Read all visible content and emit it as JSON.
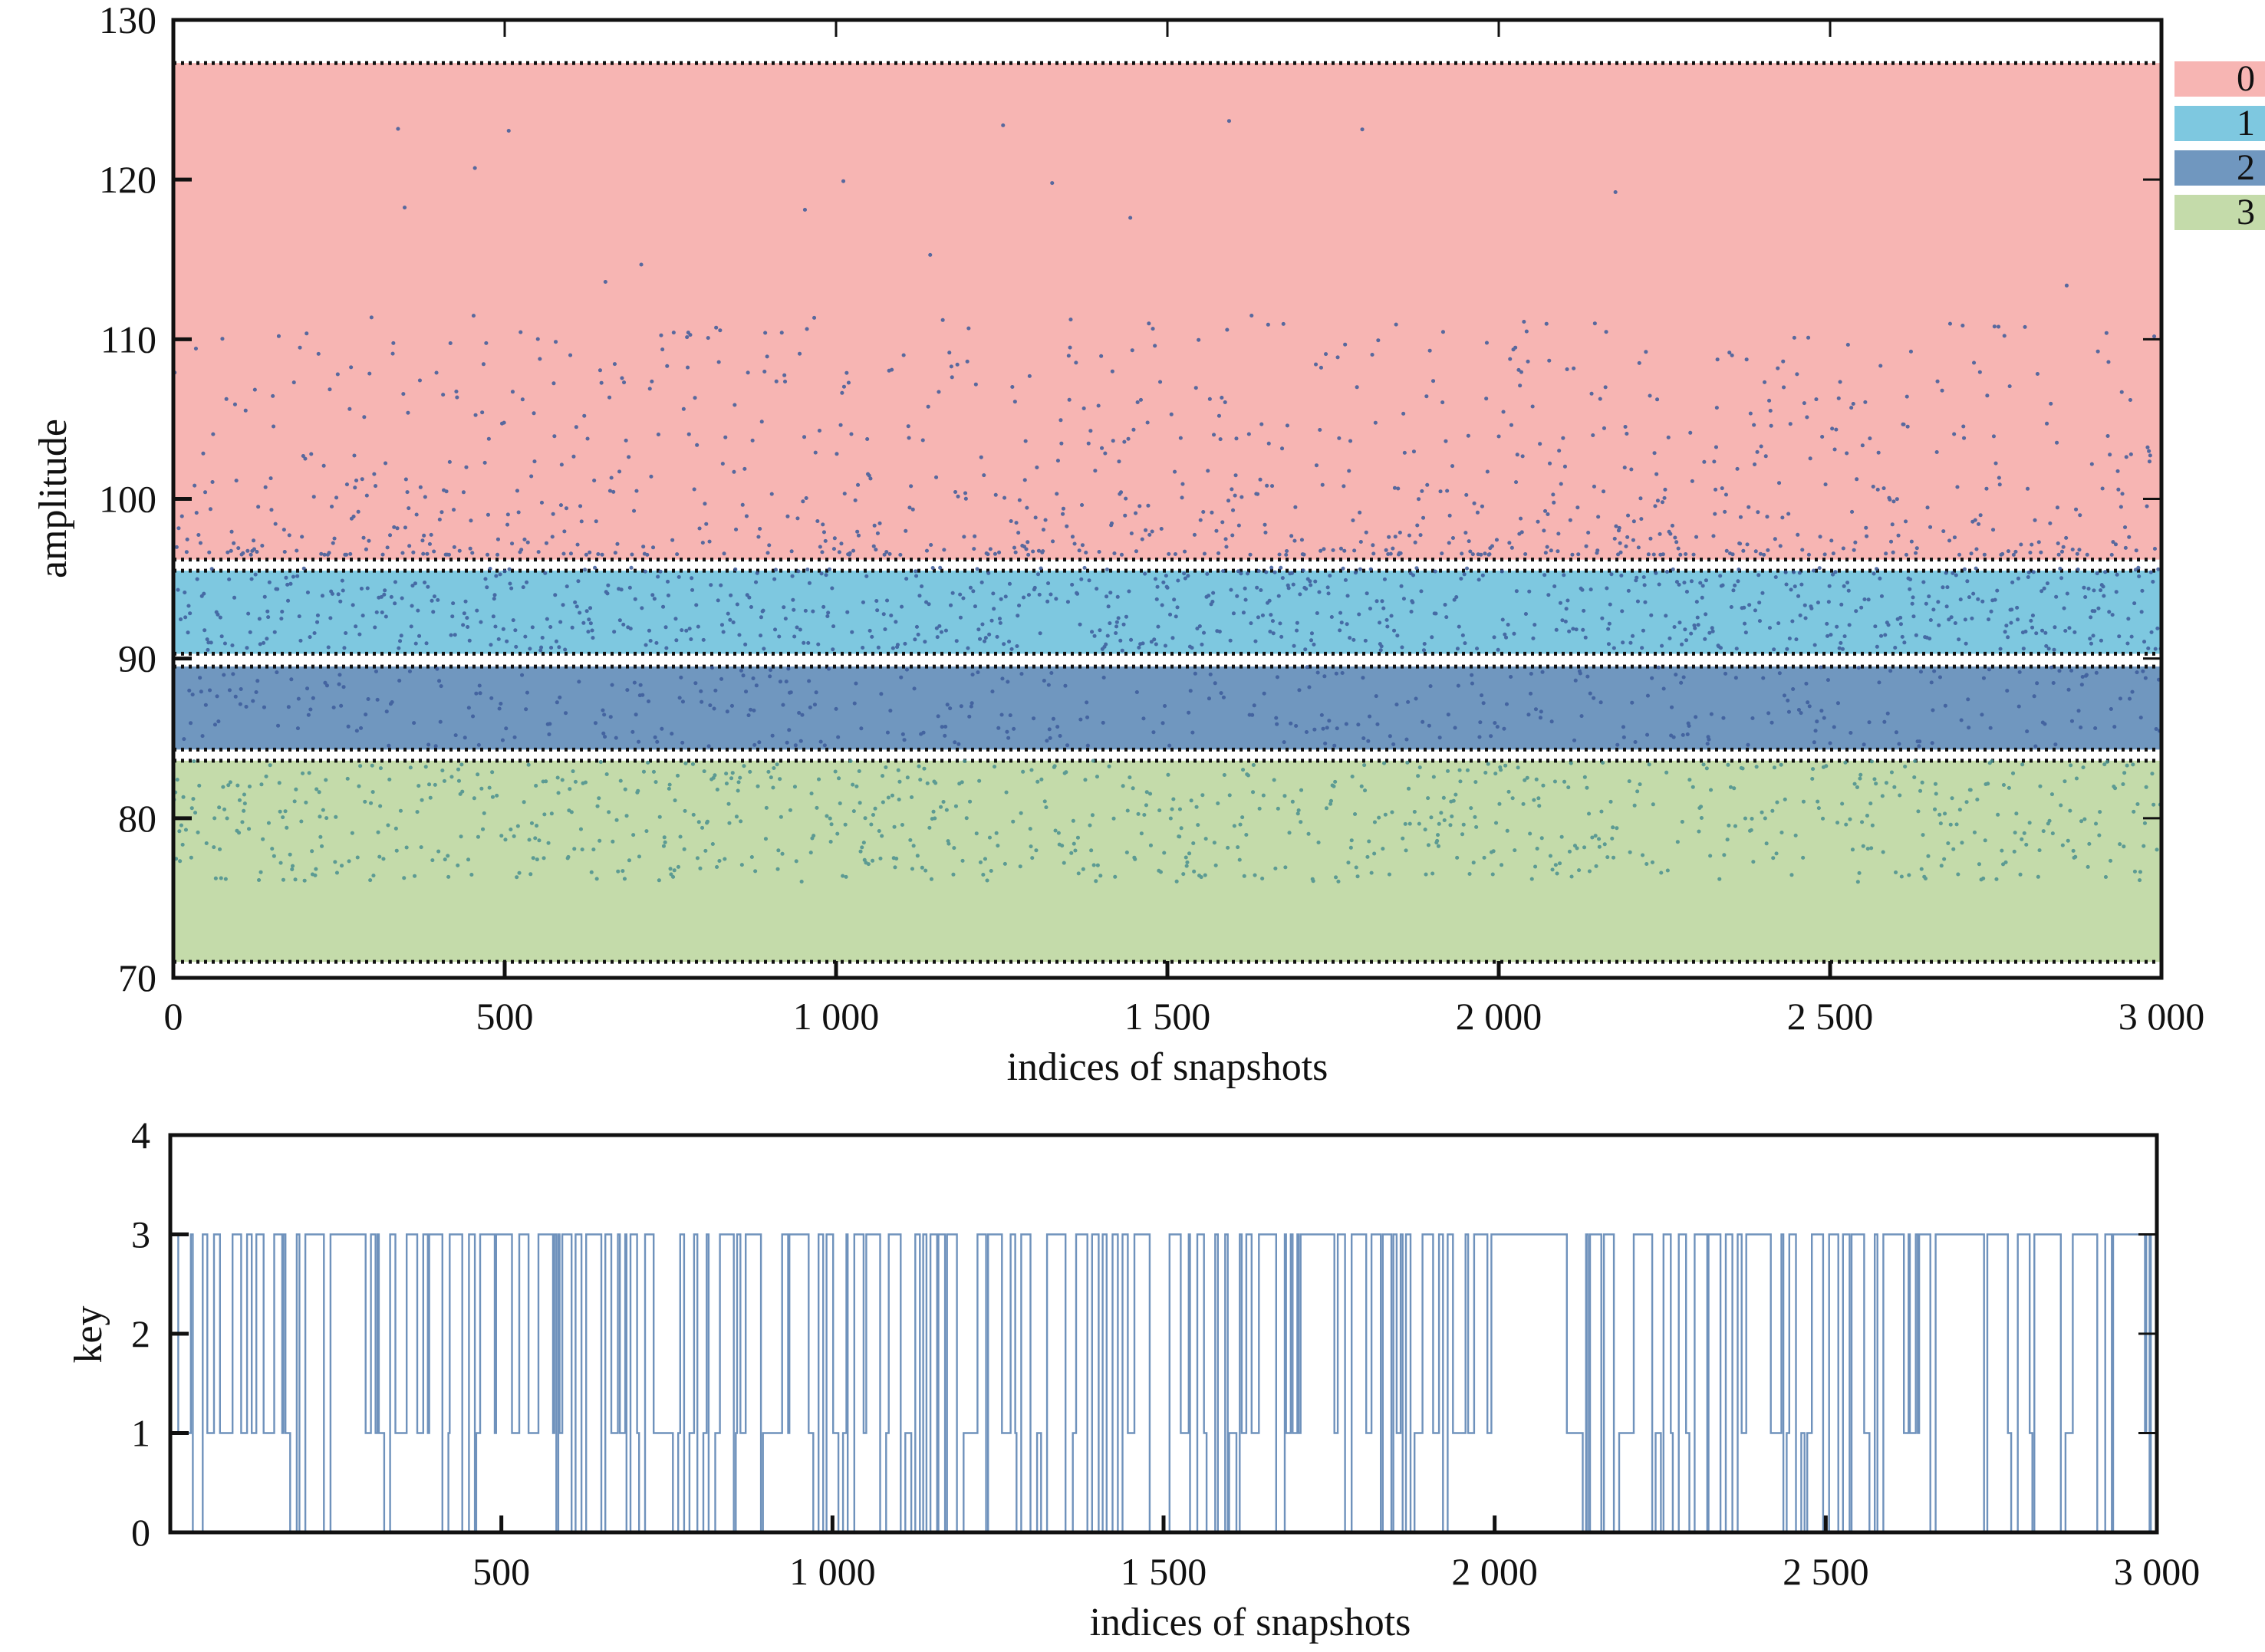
{
  "chart_data": [
    {
      "type": "scatter",
      "xlabel": "indices of snapshots",
      "ylabel": "amplitude",
      "xlim": [
        0,
        3000
      ],
      "ylim": [
        70,
        130
      ],
      "x_ticks": [
        0,
        500,
        1000,
        1500,
        2000,
        2500,
        3000
      ],
      "x_tick_labels": [
        "0",
        "500",
        "1 000",
        "1 500",
        "2 000",
        "2 500",
        "3 000"
      ],
      "y_ticks": [
        70,
        80,
        90,
        100,
        110,
        120,
        130
      ],
      "y_tick_labels": [
        "70",
        "80",
        "90",
        "100",
        "110",
        "120",
        "130"
      ],
      "grid": false,
      "legend_position": "top-right, outside plot",
      "point_color": "#3c5b9a",
      "point_color_low_band": "#4a8f8f",
      "bands": [
        {
          "key": "0",
          "label": "0",
          "ymin": 96.2,
          "ymax": 127.3,
          "color": "#f7b5b3"
        },
        {
          "key": "1",
          "label": "1",
          "ymin": 90.3,
          "ymax": 95.5,
          "color": "#7ec8e0"
        },
        {
          "key": "2",
          "label": "2",
          "ymin": 84.3,
          "ymax": 89.5,
          "color": "#7097bf"
        },
        {
          "key": "3",
          "label": "3",
          "ymin": 71.0,
          "ymax": 83.6,
          "color": "#c4dbaa"
        }
      ],
      "points_note_x_range": [
        0,
        3000
      ],
      "point_count_estimate": 3000,
      "series": [
        {
          "name": "",
          "x_step": 1,
          "y_range": [
            74.8,
            124.5
          ]
        }
      ]
    },
    {
      "type": "line",
      "xlabel": "indices of snapshots",
      "ylabel": "key",
      "xlim": [
        0,
        3000
      ],
      "ylim": [
        0,
        4
      ],
      "x_ticks": [
        500,
        1000,
        1500,
        2000,
        2500,
        3000
      ],
      "x_tick_labels": [
        "500",
        "1 000",
        "1 500",
        "2 000",
        "2 500",
        "3 000"
      ],
      "y_ticks": [
        0,
        1,
        2,
        3,
        4
      ],
      "y_tick_labels": [
        "0",
        "1",
        "2",
        "3",
        "4"
      ],
      "grid": false,
      "line_color": "#3f6ea6",
      "key_levels": [
        0,
        1,
        3
      ],
      "series": [
        {
          "name": "",
          "x_step": 1,
          "values_range": [
            0,
            3
          ]
        }
      ]
    }
  ]
}
